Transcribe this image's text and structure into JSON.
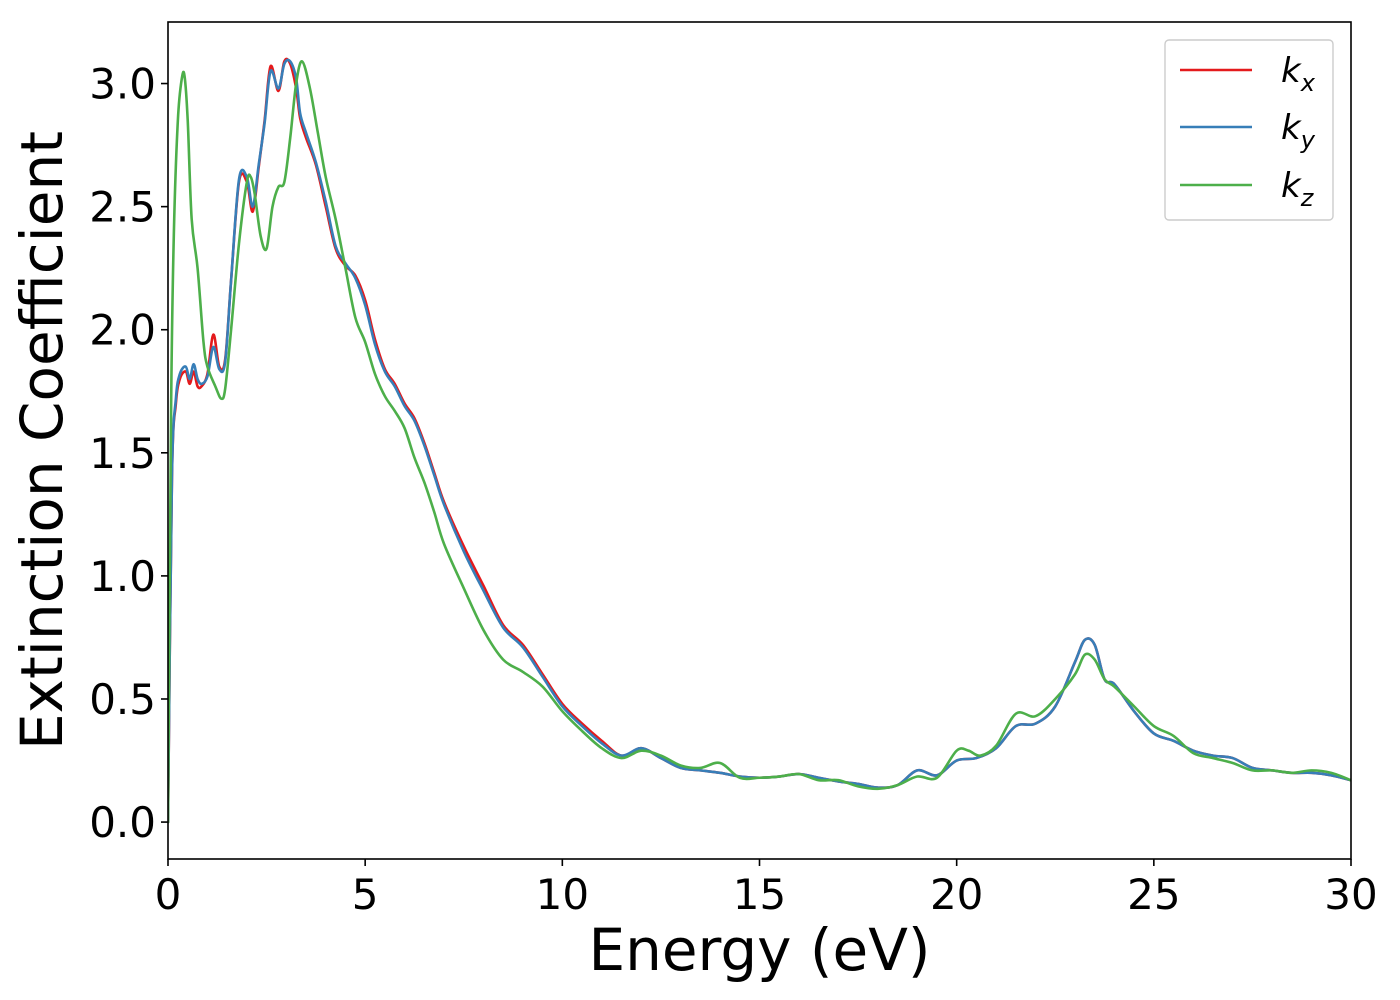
{
  "chart_data": {
    "type": "line",
    "title": "",
    "xlabel": "Energy (eV)",
    "ylabel": "Extinction Coefficient",
    "xlim": [
      0,
      30
    ],
    "ylim": [
      -0.15,
      3.25
    ],
    "xticks": [
      0,
      5,
      10,
      15,
      20,
      25,
      30
    ],
    "xtick_labels": [
      "0",
      "5",
      "10",
      "15",
      "20",
      "25",
      "30"
    ],
    "yticks": [
      0.0,
      0.5,
      1.0,
      1.5,
      2.0,
      2.5,
      3.0
    ],
    "ytick_labels": [
      "0.0",
      "0.5",
      "1.0",
      "1.5",
      "2.0",
      "2.5",
      "3.0"
    ],
    "grid": false,
    "legend_position": "top-right",
    "series": [
      {
        "name": "k",
        "subscript": "x",
        "color": "#e41a1c",
        "x": [
          0,
          0.1,
          0.2,
          0.3,
          0.45,
          0.55,
          0.65,
          0.75,
          0.85,
          1.0,
          1.15,
          1.3,
          1.45,
          1.6,
          1.8,
          2.0,
          2.15,
          2.3,
          2.45,
          2.6,
          2.8,
          2.95,
          3.1,
          3.25,
          3.35,
          3.5,
          3.75,
          4.0,
          4.25,
          4.5,
          4.75,
          5.0,
          5.25,
          5.5,
          5.75,
          6.0,
          6.25,
          6.5,
          6.75,
          7.0,
          7.5,
          8.0,
          8.5,
          9.0,
          9.5,
          10.0,
          10.5,
          11.0,
          11.5,
          12.0,
          12.5,
          13.0,
          13.5,
          14.0,
          14.5,
          15.0,
          15.5,
          16.0,
          16.5,
          17.0,
          17.5,
          18.0,
          18.5,
          19.0,
          19.5,
          20.0,
          20.5,
          21.0,
          21.5,
          22.0,
          22.5,
          23.0,
          23.25,
          23.5,
          23.75,
          24.0,
          24.5,
          25.0,
          25.5,
          26.0,
          26.5,
          27.0,
          27.5,
          28.0,
          28.5,
          29.0,
          29.5,
          30.0
        ],
        "values": [
          0.0,
          1.4,
          1.7,
          1.8,
          1.83,
          1.78,
          1.83,
          1.77,
          1.77,
          1.82,
          1.98,
          1.85,
          1.88,
          2.2,
          2.6,
          2.6,
          2.48,
          2.66,
          2.85,
          3.07,
          2.97,
          3.09,
          3.08,
          2.98,
          2.86,
          2.78,
          2.67,
          2.5,
          2.33,
          2.26,
          2.22,
          2.12,
          1.96,
          1.84,
          1.78,
          1.7,
          1.64,
          1.54,
          1.42,
          1.3,
          1.12,
          0.96,
          0.8,
          0.72,
          0.6,
          0.48,
          0.4,
          0.33,
          0.27,
          0.3,
          0.26,
          0.22,
          0.21,
          0.2,
          0.185,
          0.18,
          0.185,
          0.195,
          0.18,
          0.165,
          0.155,
          0.14,
          0.15,
          0.21,
          0.19,
          0.25,
          0.26,
          0.3,
          0.39,
          0.4,
          0.47,
          0.65,
          0.74,
          0.72,
          0.58,
          0.56,
          0.45,
          0.36,
          0.33,
          0.29,
          0.27,
          0.26,
          0.22,
          0.21,
          0.2,
          0.2,
          0.19,
          0.17
        ]
      },
      {
        "name": "k",
        "subscript": "y",
        "color": "#377eb8",
        "x": [
          0,
          0.1,
          0.2,
          0.3,
          0.45,
          0.55,
          0.65,
          0.75,
          0.85,
          1.0,
          1.15,
          1.3,
          1.45,
          1.6,
          1.8,
          2.0,
          2.15,
          2.3,
          2.45,
          2.6,
          2.8,
          2.95,
          3.1,
          3.25,
          3.35,
          3.5,
          3.75,
          4.0,
          4.25,
          4.5,
          4.75,
          5.0,
          5.25,
          5.5,
          5.75,
          6.0,
          6.25,
          6.5,
          6.75,
          7.0,
          7.5,
          8.0,
          8.5,
          9.0,
          9.5,
          10.0,
          10.5,
          11.0,
          11.5,
          12.0,
          12.5,
          13.0,
          13.5,
          14.0,
          14.5,
          15.0,
          15.5,
          16.0,
          16.5,
          17.0,
          17.5,
          18.0,
          18.5,
          19.0,
          19.5,
          20.0,
          20.5,
          21.0,
          21.5,
          22.0,
          22.5,
          23.0,
          23.25,
          23.5,
          23.75,
          24.0,
          24.5,
          25.0,
          25.5,
          26.0,
          26.5,
          27.0,
          27.5,
          28.0,
          28.5,
          29.0,
          29.5,
          30.0
        ],
        "values": [
          0.0,
          1.4,
          1.72,
          1.82,
          1.85,
          1.8,
          1.86,
          1.8,
          1.78,
          1.81,
          1.93,
          1.84,
          1.87,
          2.2,
          2.61,
          2.62,
          2.5,
          2.67,
          2.84,
          3.05,
          2.98,
          3.08,
          3.09,
          3.02,
          2.88,
          2.8,
          2.68,
          2.52,
          2.34,
          2.27,
          2.21,
          2.1,
          1.94,
          1.83,
          1.77,
          1.69,
          1.63,
          1.53,
          1.41,
          1.29,
          1.1,
          0.94,
          0.79,
          0.71,
          0.59,
          0.47,
          0.39,
          0.32,
          0.27,
          0.3,
          0.26,
          0.22,
          0.21,
          0.2,
          0.185,
          0.18,
          0.185,
          0.195,
          0.18,
          0.165,
          0.155,
          0.14,
          0.15,
          0.21,
          0.19,
          0.25,
          0.26,
          0.3,
          0.39,
          0.4,
          0.47,
          0.65,
          0.74,
          0.72,
          0.58,
          0.56,
          0.45,
          0.36,
          0.33,
          0.29,
          0.27,
          0.26,
          0.22,
          0.21,
          0.2,
          0.2,
          0.19,
          0.17
        ]
      },
      {
        "name": "k",
        "subscript": "z",
        "color": "#4daf4a",
        "x": [
          0,
          0.08,
          0.15,
          0.25,
          0.35,
          0.42,
          0.5,
          0.6,
          0.75,
          0.9,
          1.0,
          1.2,
          1.35,
          1.45,
          1.6,
          1.8,
          2.0,
          2.1,
          2.2,
          2.35,
          2.5,
          2.65,
          2.8,
          2.95,
          3.1,
          3.25,
          3.4,
          3.6,
          3.8,
          4.0,
          4.25,
          4.5,
          4.75,
          5.0,
          5.25,
          5.5,
          5.75,
          6.0,
          6.25,
          6.5,
          6.75,
          7.0,
          7.5,
          8.0,
          8.5,
          9.0,
          9.5,
          10.0,
          10.5,
          11.0,
          11.5,
          12.0,
          12.5,
          13.0,
          13.5,
          14.0,
          14.5,
          15.0,
          15.5,
          16.0,
          16.5,
          17.0,
          17.5,
          18.0,
          18.5,
          19.0,
          19.5,
          20.0,
          20.3,
          20.6,
          21.0,
          21.5,
          22.0,
          22.5,
          23.0,
          23.25,
          23.5,
          23.75,
          24.0,
          24.5,
          25.0,
          25.5,
          26.0,
          26.5,
          27.0,
          27.5,
          28.0,
          28.5,
          29.0,
          29.5,
          30.0
        ],
        "values": [
          0.0,
          1.7,
          2.4,
          2.85,
          3.02,
          3.03,
          2.85,
          2.45,
          2.25,
          1.95,
          1.85,
          1.77,
          1.72,
          1.76,
          2.0,
          2.35,
          2.6,
          2.62,
          2.55,
          2.38,
          2.33,
          2.5,
          2.58,
          2.6,
          2.78,
          3.0,
          3.09,
          2.98,
          2.8,
          2.62,
          2.45,
          2.25,
          2.05,
          1.95,
          1.82,
          1.73,
          1.67,
          1.6,
          1.48,
          1.38,
          1.26,
          1.13,
          0.95,
          0.78,
          0.66,
          0.61,
          0.55,
          0.45,
          0.37,
          0.3,
          0.26,
          0.29,
          0.27,
          0.23,
          0.22,
          0.24,
          0.18,
          0.18,
          0.185,
          0.195,
          0.17,
          0.17,
          0.145,
          0.135,
          0.15,
          0.185,
          0.18,
          0.29,
          0.29,
          0.27,
          0.31,
          0.44,
          0.43,
          0.5,
          0.6,
          0.68,
          0.66,
          0.58,
          0.55,
          0.47,
          0.39,
          0.35,
          0.28,
          0.26,
          0.24,
          0.21,
          0.21,
          0.2,
          0.21,
          0.2,
          0.17
        ]
      }
    ]
  }
}
